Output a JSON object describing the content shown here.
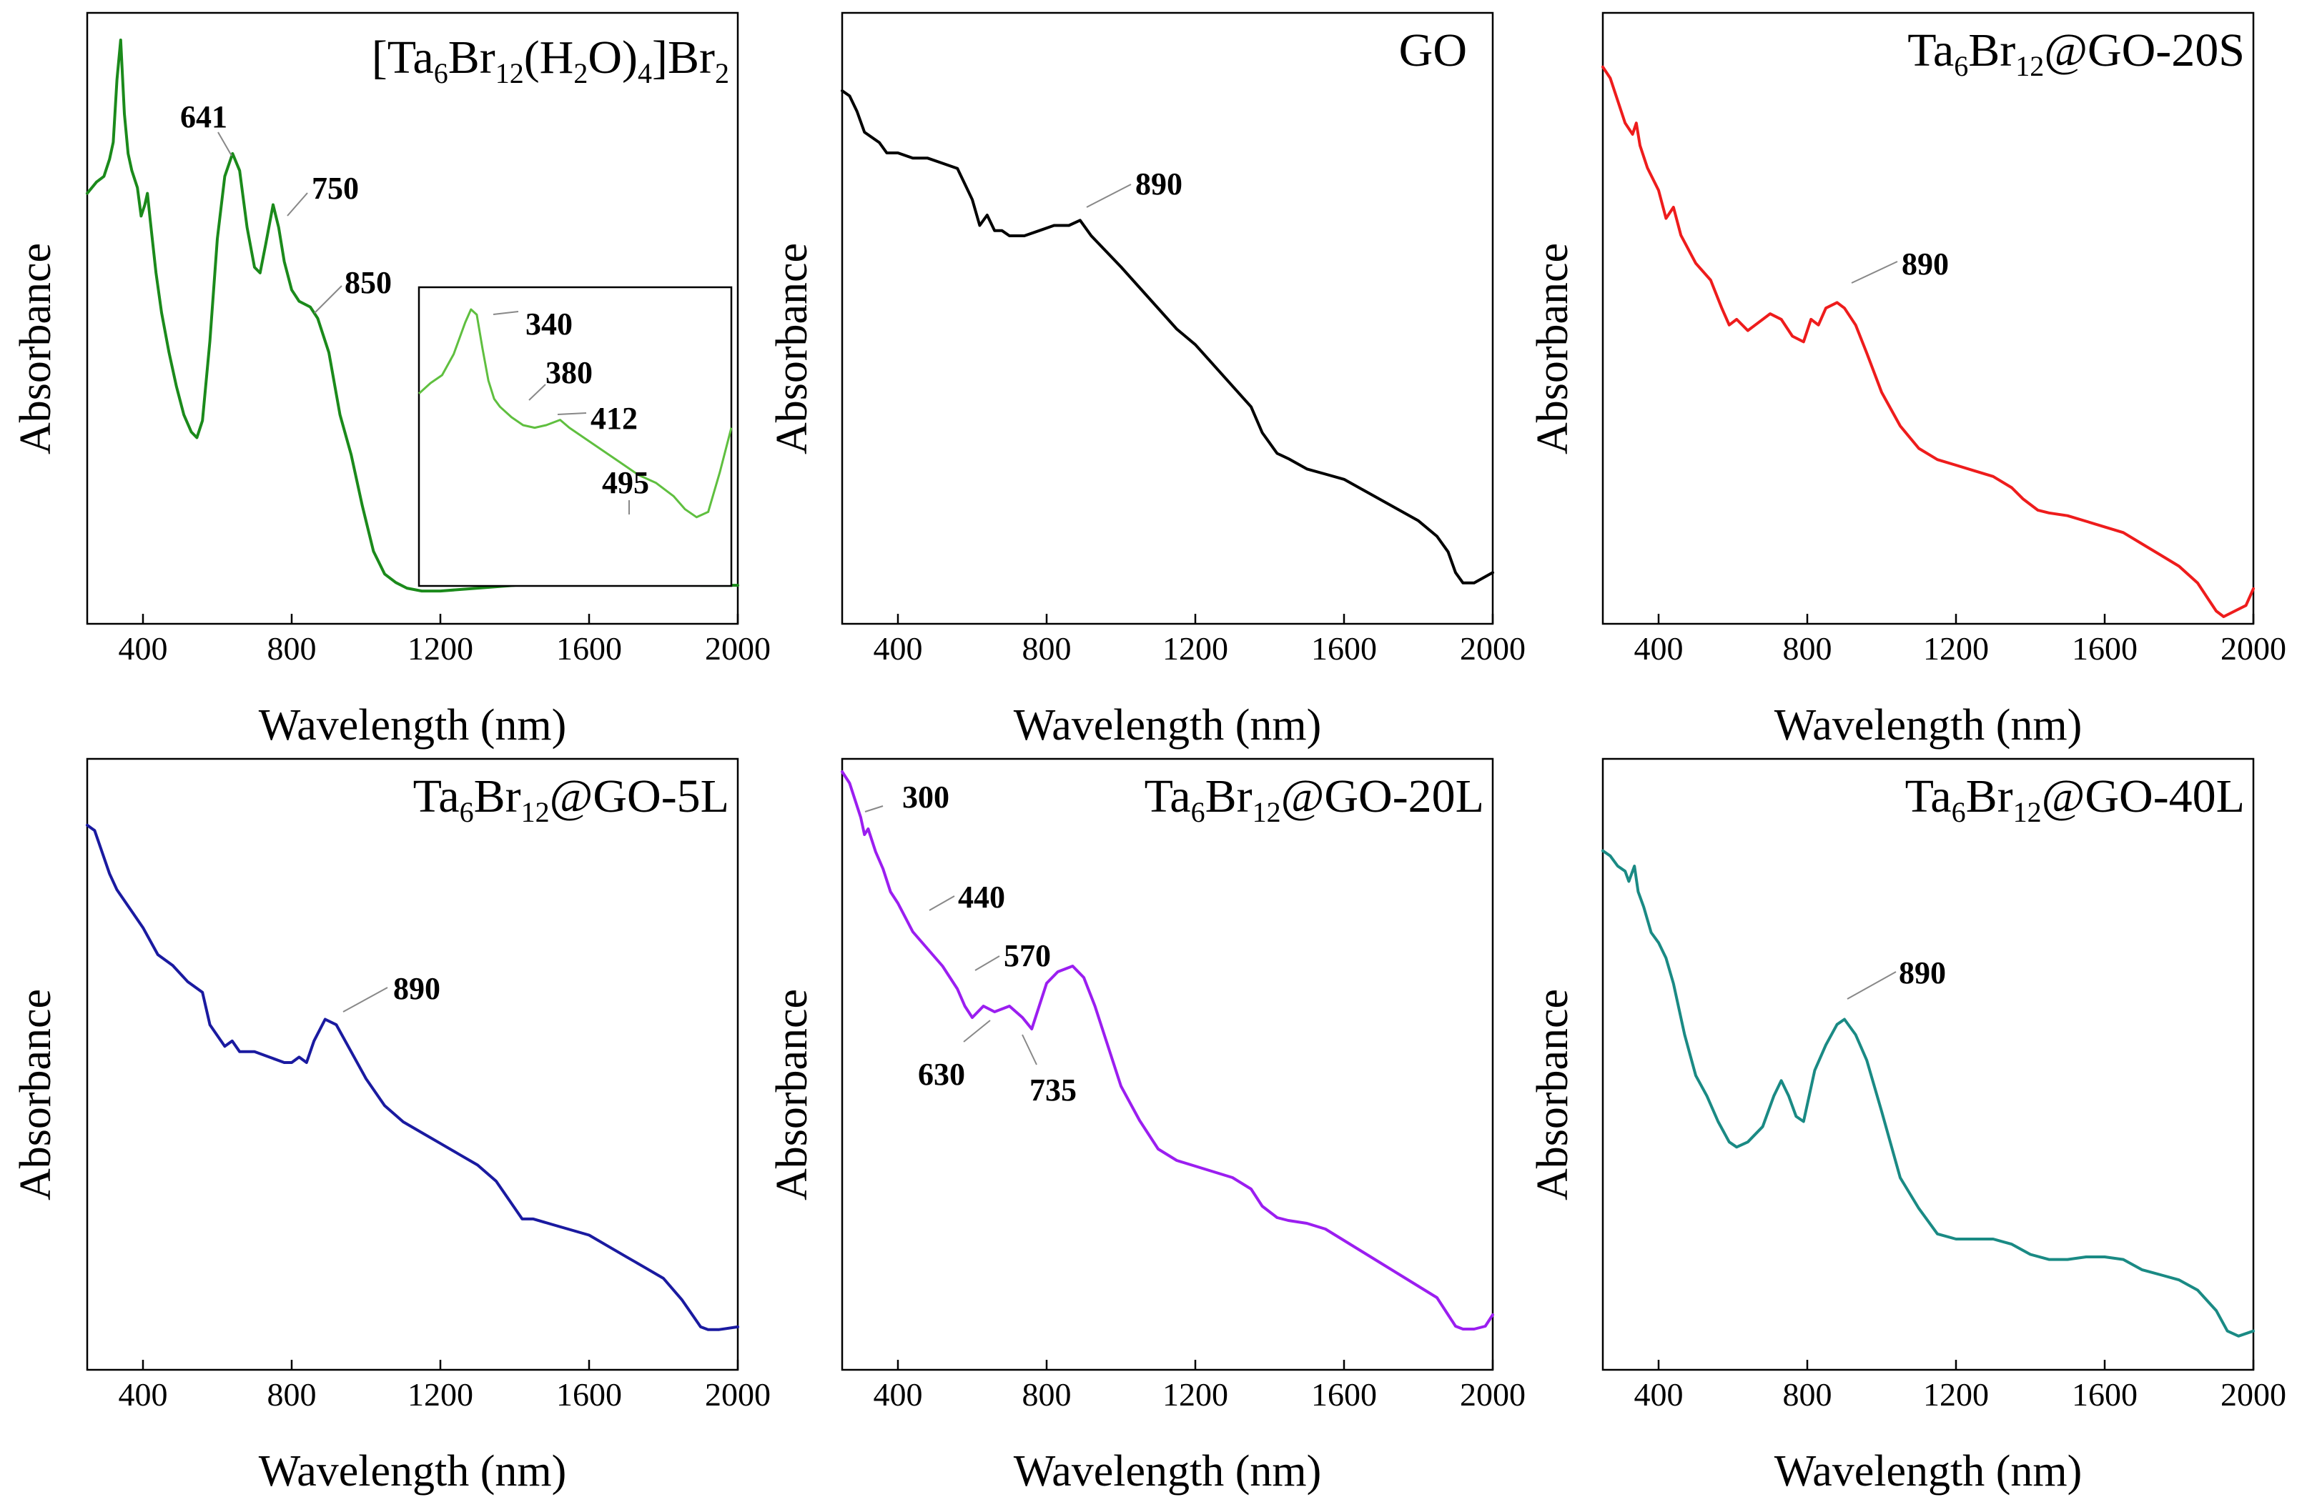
{
  "chart_data": [
    {
      "type": "line",
      "title": "[Ta6Br12(H2O)4]Br2",
      "title_parts": {
        "a": "[Ta",
        "b": "6",
        "c": "Br",
        "d": "12",
        "e": "(H",
        "f": "2",
        "g": "O)",
        "h": "4",
        "i": "]Br",
        "j": "2"
      },
      "xlabel": "Wavelength (nm)",
      "ylabel": "Absorbance",
      "xlim": [
        250,
        2000
      ],
      "ylim": [
        0,
        1
      ],
      "xticks": [
        "400",
        "800",
        "1200",
        "1600",
        "2000"
      ],
      "color": "#1b8a1b",
      "series": [
        {
          "name": "[Ta6Br12(H2O)4]Br2",
          "x": [
            250,
            275,
            295,
            310,
            320,
            330,
            340,
            350,
            360,
            370,
            385,
            395,
            405,
            412,
            420,
            435,
            450,
            470,
            490,
            510,
            530,
            545,
            560,
            580,
            600,
            620,
            641,
            660,
            680,
            700,
            715,
            730,
            750,
            765,
            780,
            800,
            820,
            850,
            870,
            900,
            930,
            960,
            990,
            1020,
            1050,
            1080,
            1110,
            1150,
            1200,
            1300,
            1400,
            1500,
            1600,
            1700,
            1800,
            1850,
            1900,
            1950,
            2000
          ],
          "y": [
            0.72,
            0.74,
            0.75,
            0.78,
            0.81,
            0.92,
            0.99,
            0.86,
            0.79,
            0.76,
            0.73,
            0.68,
            0.7,
            0.72,
            0.67,
            0.58,
            0.51,
            0.44,
            0.38,
            0.33,
            0.3,
            0.29,
            0.32,
            0.46,
            0.64,
            0.75,
            0.79,
            0.76,
            0.66,
            0.59,
            0.58,
            0.63,
            0.7,
            0.66,
            0.6,
            0.55,
            0.53,
            0.52,
            0.5,
            0.44,
            0.33,
            0.26,
            0.17,
            0.09,
            0.05,
            0.035,
            0.025,
            0.02,
            0.02,
            0.025,
            0.03,
            0.035,
            0.04,
            0.04,
            0.04,
            0.035,
            0.03,
            0.03,
            0.03
          ]
        }
      ],
      "annotations": [
        {
          "label": "641",
          "x": 641
        },
        {
          "label": "750",
          "x": 750
        },
        {
          "label": "850",
          "x": 850
        }
      ],
      "inset": {
        "xlim": [
          290,
          560
        ],
        "color": "#5fbf3f",
        "x": [
          290,
          300,
          310,
          320,
          330,
          335,
          340,
          345,
          350,
          355,
          360,
          370,
          380,
          390,
          400,
          412,
          420,
          440,
          460,
          480,
          495,
          510,
          520,
          530,
          540,
          550,
          560
        ],
        "y": [
          0.65,
          0.69,
          0.72,
          0.8,
          0.92,
          0.97,
          0.95,
          0.82,
          0.7,
          0.63,
          0.6,
          0.56,
          0.53,
          0.52,
          0.53,
          0.55,
          0.52,
          0.46,
          0.4,
          0.34,
          0.31,
          0.26,
          0.21,
          0.18,
          0.2,
          0.35,
          0.52
        ],
        "annotations": [
          {
            "label": "340",
            "x": 340
          },
          {
            "label": "380",
            "x": 380
          },
          {
            "label": "412",
            "x": 412
          },
          {
            "label": "495",
            "x": 495
          }
        ]
      }
    },
    {
      "type": "line",
      "title": "GO",
      "xlabel": "Wavelength (nm)",
      "ylabel": "Absorbance",
      "xlim": [
        250,
        2000
      ],
      "ylim": [
        0,
        1
      ],
      "xticks": [
        "400",
        "800",
        "1200",
        "1600",
        "2000"
      ],
      "color": "#000000",
      "series": [
        {
          "name": "GO",
          "x": [
            250,
            270,
            290,
            310,
            330,
            350,
            370,
            400,
            440,
            480,
            520,
            560,
            580,
            600,
            620,
            640,
            660,
            680,
            700,
            740,
            780,
            820,
            860,
            890,
            920,
            960,
            1000,
            1050,
            1100,
            1150,
            1200,
            1250,
            1300,
            1350,
            1380,
            1420,
            1450,
            1500,
            1550,
            1600,
            1650,
            1700,
            1750,
            1800,
            1850,
            1880,
            1900,
            1920,
            1950,
            2000
          ],
          "y": [
            0.96,
            0.95,
            0.92,
            0.88,
            0.87,
            0.86,
            0.84,
            0.84,
            0.83,
            0.83,
            0.82,
            0.81,
            0.78,
            0.75,
            0.7,
            0.72,
            0.69,
            0.69,
            0.68,
            0.68,
            0.69,
            0.7,
            0.7,
            0.71,
            0.68,
            0.65,
            0.62,
            0.58,
            0.54,
            0.5,
            0.47,
            0.43,
            0.39,
            0.35,
            0.3,
            0.26,
            0.25,
            0.23,
            0.22,
            0.21,
            0.19,
            0.17,
            0.15,
            0.13,
            0.1,
            0.07,
            0.03,
            0.01,
            0.01,
            0.03
          ]
        }
      ],
      "annotations": [
        {
          "label": "890",
          "x": 890
        }
      ]
    },
    {
      "type": "line",
      "title": "Ta6Br12@GO-20S",
      "title_parts": {
        "a": "Ta",
        "b": "6",
        "c": "Br",
        "d": "12",
        "e": "@GO-20S"
      },
      "xlabel": "Wavelength (nm)",
      "ylabel": "Absorbance",
      "xlim": [
        250,
        2000
      ],
      "ylim": [
        0,
        1
      ],
      "xticks": [
        "400",
        "800",
        "1200",
        "1600",
        "2000"
      ],
      "color": "#ee1c1c",
      "series": [
        {
          "name": "Ta6Br12@GO-20S",
          "x": [
            250,
            270,
            290,
            310,
            330,
            340,
            350,
            370,
            400,
            420,
            440,
            460,
            500,
            540,
            570,
            590,
            610,
            640,
            660,
            700,
            730,
            760,
            790,
            810,
            830,
            850,
            880,
            900,
            930,
            960,
            1000,
            1050,
            1100,
            1150,
            1200,
            1250,
            1300,
            1350,
            1380,
            1420,
            1450,
            1500,
            1550,
            1600,
            1650,
            1700,
            1750,
            1800,
            1850,
            1880,
            1900,
            1920,
            1950,
            1980,
            2000
          ],
          "y": [
            0.98,
            0.96,
            0.92,
            0.88,
            0.86,
            0.88,
            0.84,
            0.8,
            0.76,
            0.71,
            0.73,
            0.68,
            0.63,
            0.6,
            0.55,
            0.52,
            0.53,
            0.51,
            0.52,
            0.54,
            0.53,
            0.5,
            0.49,
            0.53,
            0.52,
            0.55,
            0.56,
            0.55,
            0.52,
            0.47,
            0.4,
            0.34,
            0.3,
            0.28,
            0.27,
            0.26,
            0.25,
            0.23,
            0.21,
            0.19,
            0.185,
            0.18,
            0.17,
            0.16,
            0.15,
            0.13,
            0.11,
            0.09,
            0.06,
            0.03,
            0.01,
            0.0,
            0.01,
            0.02,
            0.05
          ]
        }
      ],
      "annotations": [
        {
          "label": "890",
          "x": 890
        }
      ]
    },
    {
      "type": "line",
      "title": "Ta6Br12@GO-5L",
      "title_parts": {
        "a": "Ta",
        "b": "6",
        "c": "Br",
        "d": "12",
        "e": "@GO-5L"
      },
      "xlabel": "Wavelength (nm)",
      "ylabel": "Absorbance",
      "xlim": [
        250,
        2000
      ],
      "ylim": [
        0,
        1
      ],
      "xticks": [
        "400",
        "800",
        "1200",
        "1600",
        "2000"
      ],
      "color": "#1a1aa0",
      "series": [
        {
          "name": "Ta6Br12@GO-5L",
          "x": [
            250,
            270,
            290,
            310,
            330,
            350,
            370,
            400,
            440,
            480,
            520,
            560,
            580,
            600,
            620,
            640,
            660,
            700,
            740,
            780,
            800,
            820,
            840,
            860,
            890,
            920,
            960,
            1000,
            1050,
            1100,
            1150,
            1200,
            1250,
            1300,
            1350,
            1400,
            1420,
            1450,
            1500,
            1550,
            1600,
            1650,
            1700,
            1750,
            1800,
            1850,
            1880,
            1900,
            1920,
            1950,
            2000
          ],
          "y": [
            0.95,
            0.94,
            0.9,
            0.86,
            0.83,
            0.81,
            0.79,
            0.76,
            0.71,
            0.69,
            0.66,
            0.64,
            0.58,
            0.56,
            0.54,
            0.55,
            0.53,
            0.53,
            0.52,
            0.51,
            0.51,
            0.52,
            0.51,
            0.55,
            0.59,
            0.58,
            0.53,
            0.48,
            0.43,
            0.4,
            0.38,
            0.36,
            0.34,
            0.32,
            0.29,
            0.24,
            0.22,
            0.22,
            0.21,
            0.2,
            0.19,
            0.17,
            0.15,
            0.13,
            0.11,
            0.07,
            0.04,
            0.02,
            0.015,
            0.015,
            0.02
          ]
        }
      ],
      "annotations": [
        {
          "label": "890",
          "x": 890
        }
      ]
    },
    {
      "type": "line",
      "title": "Ta6Br12@GO-20L",
      "title_parts": {
        "a": "Ta",
        "b": "6",
        "c": "Br",
        "d": "12",
        "e": "@GO-20L"
      },
      "xlabel": "Wavelength (nm)",
      "ylabel": "Absorbance",
      "xlim": [
        250,
        2000
      ],
      "ylim": [
        0,
        1
      ],
      "xticks": [
        "400",
        "800",
        "1200",
        "1600",
        "2000"
      ],
      "color": "#9b1ef0",
      "series": [
        {
          "name": "Ta6Br12@GO-20L",
          "x": [
            250,
            270,
            290,
            300,
            310,
            320,
            340,
            360,
            380,
            400,
            440,
            480,
            520,
            560,
            580,
            600,
            630,
            660,
            700,
            735,
            760,
            780,
            800,
            830,
            870,
            900,
            930,
            960,
            1000,
            1050,
            1100,
            1150,
            1200,
            1250,
            1300,
            1350,
            1380,
            1420,
            1450,
            1500,
            1550,
            1600,
            1650,
            1700,
            1750,
            1800,
            1850,
            1880,
            1900,
            1920,
            1950,
            1980,
            2000
          ],
          "y": [
            0.99,
            0.97,
            0.93,
            0.91,
            0.88,
            0.89,
            0.85,
            0.82,
            0.78,
            0.76,
            0.71,
            0.68,
            0.65,
            0.61,
            0.58,
            0.56,
            0.58,
            0.57,
            0.58,
            0.56,
            0.54,
            0.58,
            0.62,
            0.64,
            0.65,
            0.63,
            0.58,
            0.52,
            0.44,
            0.38,
            0.33,
            0.31,
            0.3,
            0.29,
            0.28,
            0.26,
            0.23,
            0.21,
            0.205,
            0.2,
            0.19,
            0.17,
            0.15,
            0.13,
            0.11,
            0.09,
            0.07,
            0.04,
            0.02,
            0.015,
            0.015,
            0.02,
            0.04
          ]
        }
      ],
      "annotations": [
        {
          "label": "300",
          "x": 300
        },
        {
          "label": "440",
          "x": 440
        },
        {
          "label": "570",
          "x": 570
        },
        {
          "label": "630",
          "x": 630
        },
        {
          "label": "735",
          "x": 735
        }
      ]
    },
    {
      "type": "line",
      "title": "Ta6Br12@GO-40L",
      "title_parts": {
        "a": "Ta",
        "b": "6",
        "c": "Br",
        "d": "12",
        "e": "@GO-40L"
      },
      "xlabel": "Wavelength (nm)",
      "ylabel": "Absorbance",
      "xlim": [
        250,
        2000
      ],
      "ylim": [
        0,
        1
      ],
      "xticks": [
        "400",
        "800",
        "1200",
        "1600",
        "2000"
      ],
      "color": "#1a8a84",
      "series": [
        {
          "name": "Ta6Br12@GO-40L",
          "x": [
            250,
            270,
            290,
            310,
            320,
            335,
            345,
            360,
            380,
            400,
            420,
            440,
            470,
            500,
            530,
            560,
            590,
            610,
            640,
            680,
            710,
            730,
            750,
            770,
            790,
            820,
            850,
            880,
            900,
            930,
            960,
            1000,
            1050,
            1100,
            1150,
            1200,
            1250,
            1300,
            1350,
            1400,
            1450,
            1500,
            1550,
            1600,
            1650,
            1700,
            1750,
            1800,
            1850,
            1900,
            1930,
            1960,
            2000
          ],
          "y": [
            0.96,
            0.95,
            0.93,
            0.92,
            0.9,
            0.93,
            0.88,
            0.85,
            0.8,
            0.78,
            0.75,
            0.7,
            0.6,
            0.52,
            0.48,
            0.43,
            0.39,
            0.38,
            0.39,
            0.42,
            0.48,
            0.51,
            0.48,
            0.44,
            0.43,
            0.53,
            0.58,
            0.62,
            0.63,
            0.6,
            0.55,
            0.45,
            0.32,
            0.26,
            0.21,
            0.2,
            0.2,
            0.2,
            0.19,
            0.17,
            0.16,
            0.16,
            0.165,
            0.165,
            0.16,
            0.14,
            0.13,
            0.12,
            0.1,
            0.06,
            0.02,
            0.01,
            0.02
          ]
        }
      ],
      "annotations": [
        {
          "label": "890",
          "x": 890
        }
      ]
    }
  ]
}
